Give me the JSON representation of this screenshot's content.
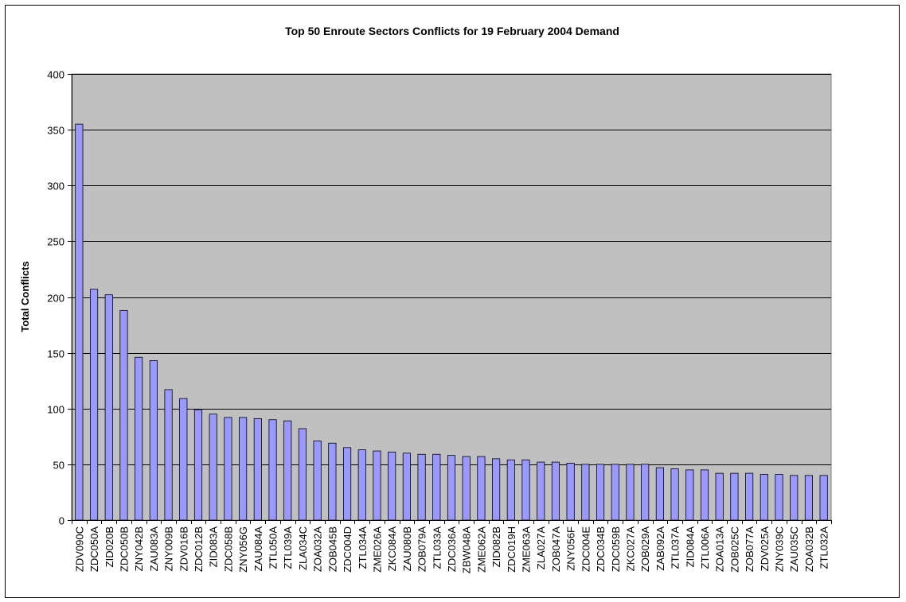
{
  "chart_data": {
    "type": "bar",
    "title": "Top 50 Enroute Sectors Conflicts for 19 February 2004 Demand",
    "xlabel": "",
    "ylabel": "Total Conflicts",
    "ylim": [
      0,
      400
    ],
    "yticks": [
      0,
      50,
      100,
      150,
      200,
      250,
      300,
      350,
      400
    ],
    "grid": true,
    "legend": "none",
    "colors": {
      "plot_background": "#c0c0c0",
      "bar_fill": "#9999ff",
      "bar_stroke": "#000000",
      "gridline": "#000000"
    },
    "categories": [
      "ZDV090C",
      "ZDC050A",
      "ZID020B",
      "ZDC050B",
      "ZNY042B",
      "ZAU083A",
      "ZNY009B",
      "ZDV016B",
      "ZDC012B",
      "ZID083A",
      "ZDC058B",
      "ZNY056G",
      "ZAU084A",
      "ZTL050A",
      "ZTL039A",
      "ZLA034C",
      "ZOA032A",
      "ZOB045B",
      "ZDC004D",
      "ZTL034A",
      "ZME026A",
      "ZKC084A",
      "ZAU080B",
      "ZOB079A",
      "ZTL033A",
      "ZDC036A",
      "ZBW048A",
      "ZME062A",
      "ZID082B",
      "ZDC019H",
      "ZME063A",
      "ZLA027A",
      "ZOB047A",
      "ZNY056F",
      "ZDC004E",
      "ZDC034B",
      "ZDC059B",
      "ZKC027A",
      "ZOB029A",
      "ZAB092A",
      "ZTL037A",
      "ZID084A",
      "ZTL006A",
      "ZOA013A",
      "ZOB025C",
      "ZOB077A",
      "ZDV025A",
      "ZNY039C",
      "ZAU035C",
      "ZOA032B",
      "ZTL032A"
    ],
    "values": [
      355,
      207,
      202,
      188,
      146,
      143,
      117,
      109,
      99,
      95,
      92,
      92,
      91,
      90,
      89,
      82,
      71,
      69,
      65,
      63,
      62,
      61,
      60,
      59,
      59,
      58,
      57,
      57,
      55,
      54,
      54,
      52,
      52,
      51,
      50,
      50,
      50,
      50,
      50,
      47,
      46,
      45,
      45,
      42,
      42,
      42,
      41,
      41,
      40,
      40,
      40
    ]
  }
}
